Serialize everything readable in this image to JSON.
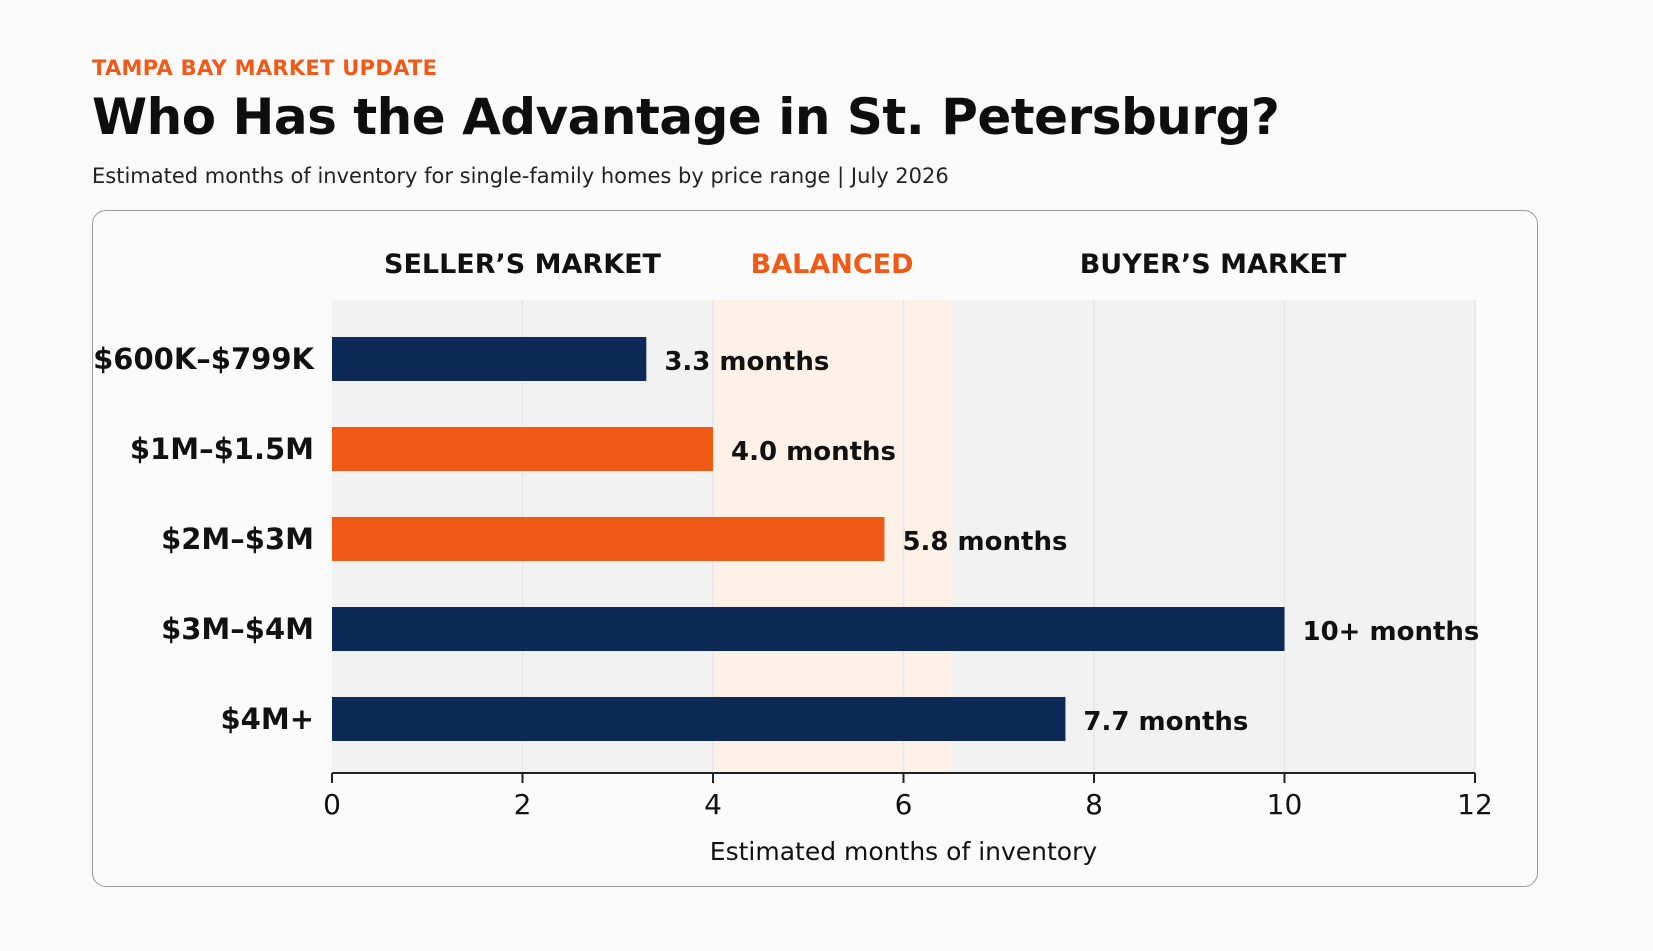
{
  "header": {
    "kicker": "TAMPA BAY MARKET UPDATE",
    "title": "Who Has the Advantage in St. Petersburg?",
    "subtitle": "Estimated months of inventory for single-family homes by price range | July 2026"
  },
  "colors": {
    "accent": "#f15a16",
    "navy": "#0c2a55",
    "balanced_band": "#fdf1e8",
    "plot_bg": "#f2f2f2"
  },
  "chart_data": {
    "type": "bar",
    "orientation": "horizontal",
    "categories": [
      "$600K–$799K",
      "$1M–$1.5M",
      "$2M–$3M",
      "$3M–$4M",
      "$4M+"
    ],
    "values": [
      3.3,
      4.0,
      5.8,
      10,
      7.7
    ],
    "value_labels": [
      "3.3 months",
      "4.0 months",
      "5.8 months",
      "10+ months",
      "7.7 months"
    ],
    "bar_colors": [
      "#0c2a55",
      "#f15a16",
      "#f15a16",
      "#0c2a55",
      "#0c2a55"
    ],
    "xlabel": "Estimated months of inventory",
    "xlim": [
      0,
      12
    ],
    "xticks": [
      0,
      2,
      4,
      6,
      8,
      10,
      12
    ],
    "grid": true,
    "zones": [
      {
        "label": "SELLER’S MARKET",
        "range": [
          0,
          4
        ],
        "color": "#111111"
      },
      {
        "label": "BALANCED",
        "range": [
          4,
          6.5
        ],
        "color": "#f15a16"
      },
      {
        "label": "BUYER’S MARKET",
        "range": [
          6.5,
          12
        ],
        "color": "#111111"
      }
    ]
  }
}
